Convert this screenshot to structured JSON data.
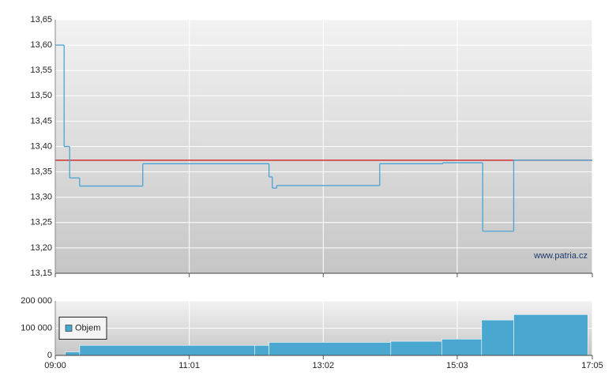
{
  "chart_data": [
    {
      "type": "step-line",
      "x": [
        "09:00",
        "09:08",
        "09:13",
        "09:22",
        "10:19",
        "12:13",
        "12:16",
        "12:20",
        "13:53",
        "14:50",
        "15:26",
        "15:54",
        "17:05"
      ],
      "series": [
        {
          "color": "#4aa3d4",
          "values": [
            13.6,
            13.4,
            13.338,
            13.322,
            13.366,
            13.34,
            13.318,
            13.323,
            13.366,
            13.368,
            13.233,
            13.373,
            13.373
          ]
        }
      ],
      "reference_value": 13.373,
      "reference_color": "#d03030",
      "xlim": [
        "09:00",
        "17:05"
      ],
      "xticks": [
        "09:00",
        "11:01",
        "13:02",
        "15:03",
        "17:05"
      ],
      "ylim": [
        13.15,
        13.65
      ],
      "yticks": [
        {
          "value": 13.15,
          "label": "13,15"
        },
        {
          "value": 13.2,
          "label": "13,20"
        },
        {
          "value": 13.25,
          "label": "13,25"
        },
        {
          "value": 13.3,
          "label": "13,30"
        },
        {
          "value": 13.35,
          "label": "13,35"
        },
        {
          "value": 13.4,
          "label": "13,40"
        },
        {
          "value": 13.45,
          "label": "13,45"
        },
        {
          "value": 13.5,
          "label": "13,50"
        },
        {
          "value": 13.55,
          "label": "13,55"
        },
        {
          "value": 13.6,
          "label": "13,60"
        },
        {
          "value": 13.65,
          "label": "13,65"
        }
      ],
      "grid": true,
      "watermark": "www.patria.cz"
    },
    {
      "type": "histogram",
      "bins": [
        "09:09",
        "09:22",
        "12:00",
        "12:13",
        "14:03",
        "14:49",
        "15:25",
        "15:54",
        "17:01"
      ],
      "series": [
        {
          "name": "Objem",
          "color": "#4aa8d0",
          "values": [
            13000,
            37000,
            37000,
            48000,
            52000,
            60000,
            130000,
            150000
          ]
        }
      ],
      "xlim": [
        "09:00",
        "17:05"
      ],
      "xticks": [
        "09:00",
        "11:01",
        "13:02",
        "15:03",
        "17:05"
      ],
      "ylim": [
        0,
        200000
      ],
      "yticks": [
        0,
        {
          "value": 100000,
          "label": "100 000"
        },
        {
          "value": 200000,
          "label": "200 000"
        }
      ],
      "grid": true,
      "legend": "left"
    }
  ]
}
